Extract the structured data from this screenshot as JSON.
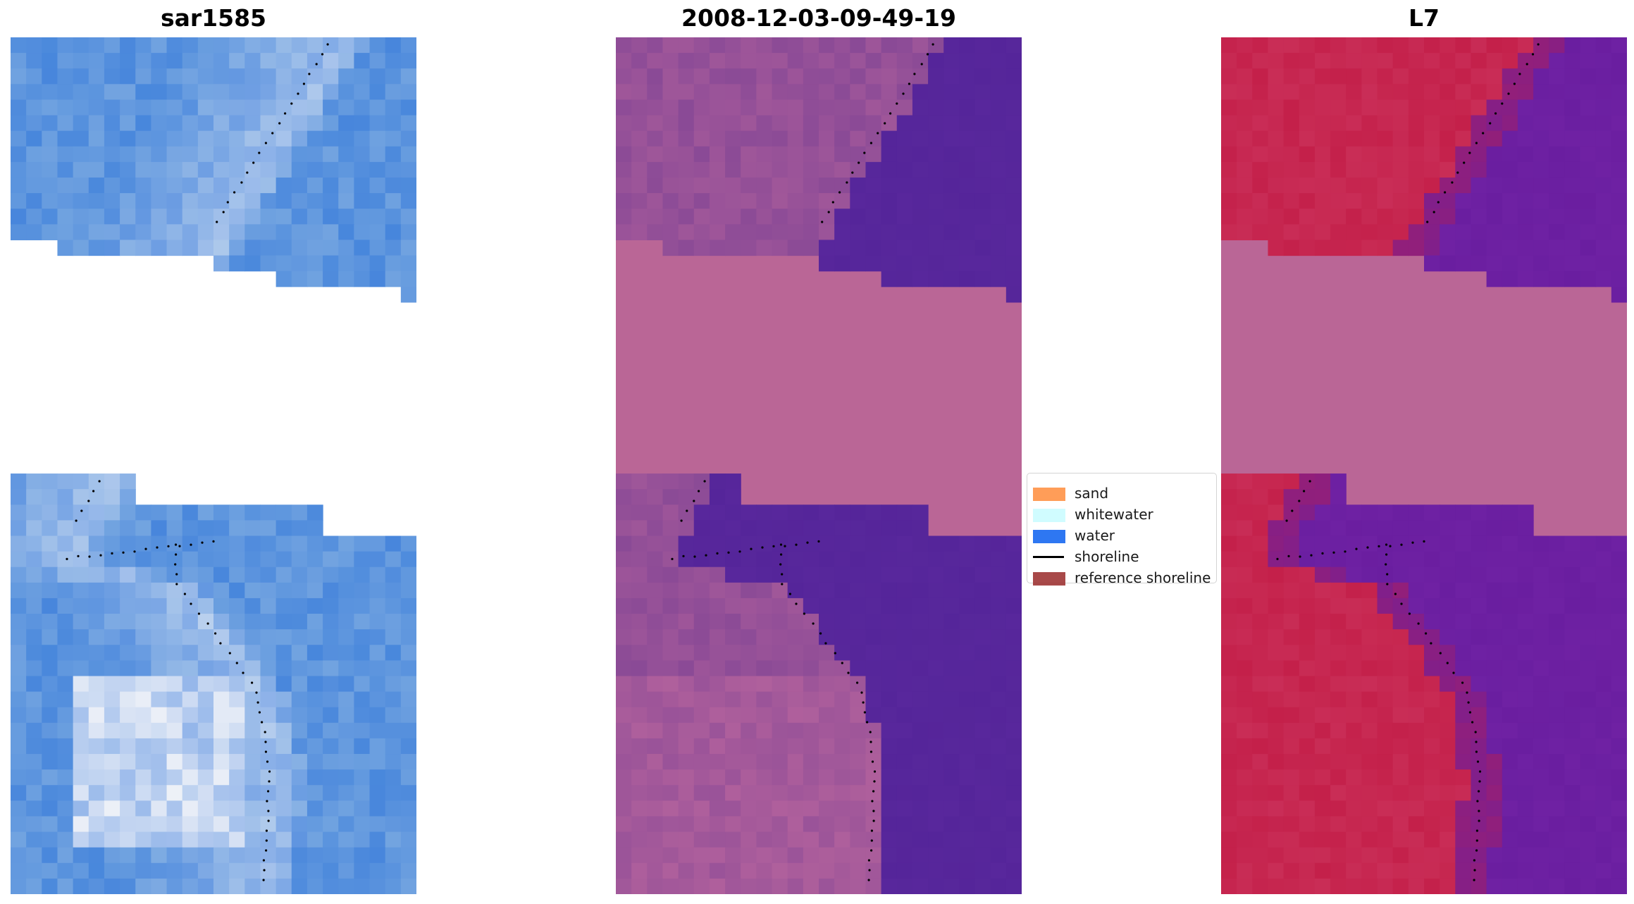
{
  "panels": [
    {
      "title": "sar1585"
    },
    {
      "title": "2008-12-03-09-49-19"
    },
    {
      "title": "L7"
    }
  ],
  "legend": {
    "items": [
      {
        "label": "sand",
        "kind": "patch",
        "color": "#ff8c3c"
      },
      {
        "label": "whitewater",
        "kind": "patch",
        "color": "#c8fcff"
      },
      {
        "label": "water",
        "kind": "patch",
        "color": "#0a60f0"
      },
      {
        "label": "shoreline",
        "kind": "line",
        "color": "#000000"
      },
      {
        "label": "reference shoreline",
        "kind": "patch",
        "color": "#9a2a2a"
      }
    ]
  },
  "colors": {
    "sar_water": "#5d95de",
    "sar_white": "#e8ecf8",
    "index_land": "#8a4a96",
    "index_water": "#55259a",
    "index_nodata": "#ba6696",
    "l7_land": "#c4204a",
    "l7_water": "#6a1ea0",
    "l7_nodata": "#ba6696",
    "shoreline_dots": "#000000"
  }
}
